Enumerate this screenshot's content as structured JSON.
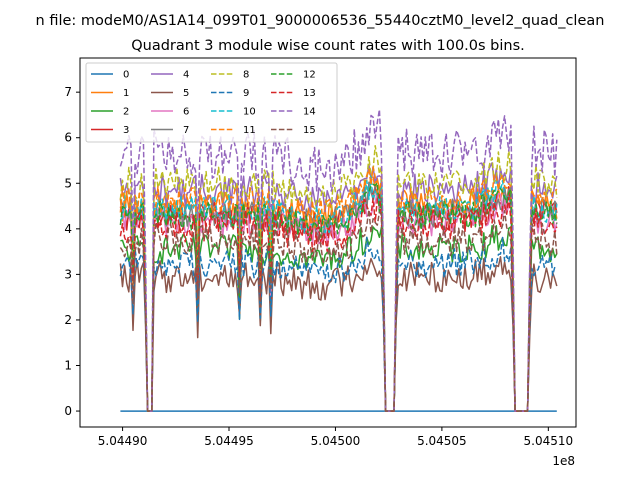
{
  "chart_data": {
    "type": "line",
    "suptitle": "n file: modeM0/AS1A14_099T01_9000006536_55440cztM0_level2_quad_clean",
    "title": "Quadrant 3 module wise count rates with 100.0s bins.",
    "xlabel": "",
    "ylabel": "",
    "x_offset_label": "1e8",
    "xlim": [
      504488000.0,
      504511300.0
    ],
    "ylim": [
      -0.35,
      7.75
    ],
    "x_ticks": [
      504490000.0,
      504495000.0,
      504500000.0,
      504505000.0,
      504510000.0
    ],
    "x_tick_labels": [
      "5.04490",
      "5.04495",
      "5.04500",
      "5.04505",
      "5.04510"
    ],
    "y_ticks": [
      0,
      1,
      2,
      3,
      4,
      5,
      6,
      7
    ],
    "y_tick_labels": [
      "0",
      "1",
      "2",
      "3",
      "4",
      "5",
      "6",
      "7"
    ],
    "x_range_data": [
      504489900.0,
      504510400.0
    ],
    "bin_seconds": 100.0,
    "dips": [
      {
        "start": 504491100.0,
        "end": 504491400.0,
        "min_value": 0.0
      },
      {
        "start": 504502300.0,
        "end": 504502800.0,
        "min_value": 0.0
      },
      {
        "start": 504508400.0,
        "end": 504509100.0,
        "min_value": 0.0
      }
    ],
    "legend": {
      "location": "upper-left",
      "columns": 4
    },
    "series": [
      {
        "name": "0",
        "color": "#1f77b4",
        "style": "solid",
        "level": 0.0,
        "noise": 0.0
      },
      {
        "name": "1",
        "color": "#ff7f0e",
        "style": "solid",
        "level": 4.5,
        "noise": 0.18
      },
      {
        "name": "2",
        "color": "#2ca02c",
        "style": "solid",
        "level": 3.55,
        "noise": 0.18
      },
      {
        "name": "3",
        "color": "#d62728",
        "style": "solid",
        "level": 4.25,
        "noise": 0.2
      },
      {
        "name": "4",
        "color": "#9467bd",
        "style": "solid",
        "level": 4.85,
        "noise": 0.2
      },
      {
        "name": "5",
        "color": "#8c564b",
        "style": "solid",
        "level": 2.95,
        "noise": 0.2
      },
      {
        "name": "6",
        "color": "#e377c2",
        "style": "solid",
        "level": 4.15,
        "noise": 0.18
      },
      {
        "name": "7",
        "color": "#7f7f7f",
        "style": "solid",
        "level": 4.35,
        "noise": 0.18
      },
      {
        "name": "8",
        "color": "#bcbd22",
        "style": "dashed",
        "level": 5.0,
        "noise": 0.2
      },
      {
        "name": "9",
        "color": "#1f77b4",
        "style": "dashed",
        "level": 3.25,
        "noise": 0.18
      },
      {
        "name": "10",
        "color": "#17becf",
        "style": "dashed",
        "level": 4.45,
        "noise": 0.18
      },
      {
        "name": "11",
        "color": "#ff7f0e",
        "style": "dashed",
        "level": 4.6,
        "noise": 0.18
      },
      {
        "name": "12",
        "color": "#2ca02c",
        "style": "dashed",
        "level": 4.3,
        "noise": 0.18
      },
      {
        "name": "13",
        "color": "#d62728",
        "style": "dashed",
        "level": 4.05,
        "noise": 0.2
      },
      {
        "name": "14",
        "color": "#9467bd",
        "style": "dashed",
        "level": 5.65,
        "noise": 0.3
      },
      {
        "name": "15",
        "color": "#8c564b",
        "style": "dashed",
        "level": 3.75,
        "noise": 0.2
      }
    ]
  }
}
